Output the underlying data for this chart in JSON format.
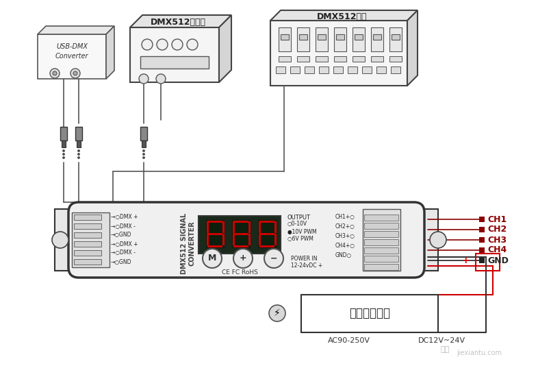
{
  "bg_color": "#f0f0f0",
  "title": "DMX512控制器",
  "title2": "DMX512控台",
  "usb_label1": "USB-DMX",
  "usb_label2": "Converter",
  "converter_label": "DMX512 SIGNAL\nCONVERTER",
  "output_labels": [
    "OUTPUT",
    "0-10V",
    "10V PWM",
    "6V PWM"
  ],
  "ch_labels": [
    "CH1+",
    "CH2+",
    "CH3+",
    "CH4+",
    "GND"
  ],
  "signal_labels": [
    "→○DMX +",
    "→○DMX -",
    "→○GND",
    "→○DMX +",
    "→○DMX -",
    "→○GND"
  ],
  "power_label": "POWER IN\n12-24vDC +",
  "channel_right": [
    "CH1",
    "CH2",
    "CH3",
    "CH4",
    "GND"
  ],
  "channel_colors": [
    "#8b0000",
    "#8b0000",
    "#8b0000",
    "#8b0000",
    "#222222"
  ],
  "power_supply_label": "恒压开关电源",
  "ac_label": "AC90-250V",
  "dc_label": "DC12V~24V",
  "plus_label": "+",
  "ce_label": "CE FC RoHS",
  "button_m": "M",
  "button_plus": "+",
  "button_minus": "−"
}
